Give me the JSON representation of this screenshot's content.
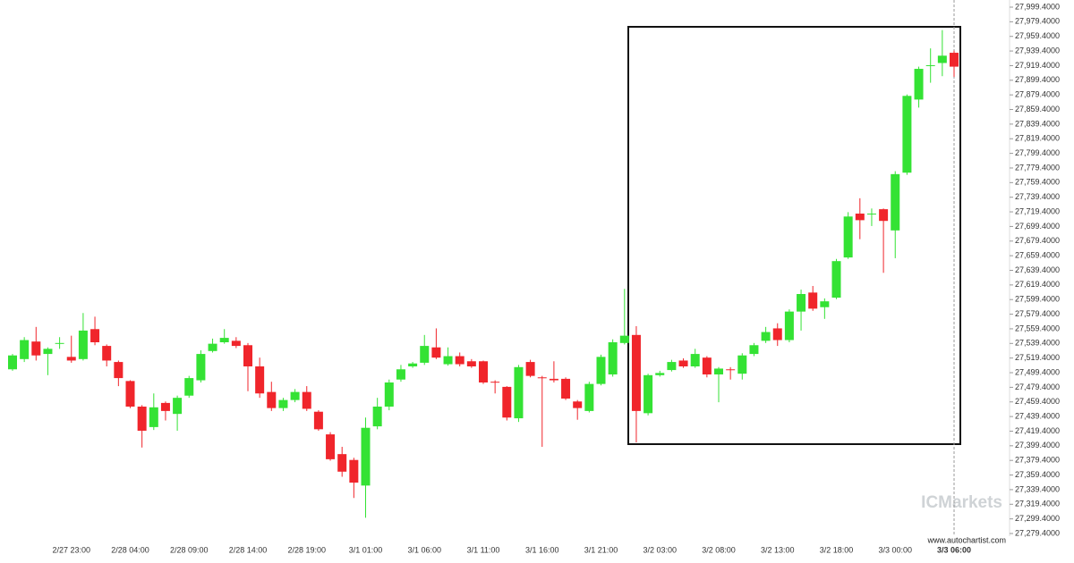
{
  "chart_data": {
    "type": "candlestick",
    "watermark": "ICMarkets",
    "source": "www.autochartist.com",
    "up_color": "#34e234",
    "down_color": "#f0252b",
    "categories": [
      null,
      null,
      null,
      null,
      null,
      "2/27 23:00",
      null,
      null,
      null,
      null,
      "2/28 04:00",
      null,
      null,
      null,
      null,
      "2/28 09:00",
      null,
      null,
      null,
      null,
      "2/28 14:00",
      null,
      null,
      null,
      null,
      "2/28 19:00",
      null,
      null,
      null,
      null,
      "3/1 01:00",
      null,
      null,
      null,
      null,
      "3/1 06:00",
      null,
      null,
      null,
      null,
      "3/1 11:00",
      null,
      null,
      null,
      null,
      "3/1 16:00",
      null,
      null,
      null,
      null,
      "3/1 21:00",
      null,
      null,
      null,
      null,
      "3/2 03:00",
      null,
      null,
      null,
      null,
      "3/2 08:00",
      null,
      null,
      null,
      null,
      "3/2 13:00",
      null,
      null,
      null,
      null,
      "3/2 18:00",
      null,
      null,
      null,
      null,
      "3/3 00:00",
      null,
      null,
      null,
      null,
      "3/3 06:00"
    ],
    "open": [
      27504,
      27518,
      27542,
      27525,
      27540,
      27521,
      27518,
      27559,
      27536,
      27514,
      27488,
      27453,
      27425,
      27458,
      27443,
      27468,
      27489,
      27529,
      27541,
      27543,
      27537,
      27508,
      27473,
      27451,
      27462,
      27473,
      27446,
      27415,
      27388,
      27380,
      27345,
      27426,
      27453,
      27490,
      27508,
      27513,
      27534,
      27511,
      27522,
      27515,
      27515,
      27487,
      27480,
      27437,
      27514,
      27493,
      27491,
      27491,
      27460,
      27447,
      27484,
      27497,
      27540,
      27551,
      27444,
      27496,
      27503,
      27516,
      27508,
      27520,
      27497,
      27504,
      27498,
      27525,
      27543,
      27560,
      27544,
      27583,
      27609,
      27589,
      27602,
      27657,
      27717,
      27716,
      27723,
      27694,
      27773,
      27873,
      27919,
      27923,
      27937
    ],
    "high": [
      27525,
      27548,
      27562,
      27534,
      27548,
      27550,
      27581,
      27576,
      27538,
      27516,
      27489,
      27455,
      27471,
      27460,
      27468,
      27495,
      27530,
      27546,
      27559,
      27548,
      27540,
      27520,
      27487,
      27465,
      27477,
      27481,
      27448,
      27418,
      27398,
      27383,
      27438,
      27465,
      27490,
      27510,
      27514,
      27551,
      27560,
      27534,
      27527,
      27518,
      27516,
      27489,
      27481,
      27510,
      27517,
      27495,
      27515,
      27493,
      27462,
      27487,
      27524,
      27545,
      27614,
      27563,
      27498,
      27502,
      27517,
      27519,
      27532,
      27522,
      27507,
      27507,
      27526,
      27540,
      27562,
      27567,
      27586,
      27613,
      27618,
      27601,
      27655,
      27719,
      27738,
      27724,
      27724,
      27775,
      27880,
      27918,
      27943,
      27968,
      27940
    ],
    "low": [
      27502,
      27514,
      27516,
      27496,
      27532,
      27513,
      27516,
      27537,
      27508,
      27481,
      27451,
      27397,
      27421,
      27434,
      27420,
      27465,
      27486,
      27527,
      27539,
      27533,
      27474,
      27465,
      27447,
      27447,
      27459,
      27447,
      27420,
      27379,
      27357,
      27328,
      27301,
      27422,
      27448,
      27487,
      27506,
      27510,
      27518,
      27509,
      27508,
      27506,
      27484,
      27471,
      27434,
      27432,
      27493,
      27398,
      27486,
      27462,
      27435,
      27445,
      27482,
      27494,
      27538,
      27404,
      27441,
      27494,
      27501,
      27506,
      27506,
      27493,
      27459,
      27490,
      27490,
      27522,
      27540,
      27536,
      27541,
      27557,
      27584,
      27573,
      27600,
      27655,
      27682,
      27700,
      27636,
      27656,
      27770,
      27862,
      27896,
      27905,
      27904
    ],
    "close": [
      27523,
      27544,
      27523,
      27532,
      27540,
      27516,
      27557,
      27541,
      27516,
      27492,
      27453,
      27420,
      27452,
      27447,
      27465,
      27492,
      27525,
      27539,
      27547,
      27536,
      27508,
      27471,
      27451,
      27462,
      27473,
      27450,
      27422,
      27381,
      27364,
      27349,
      27424,
      27453,
      27486,
      27504,
      27512,
      27536,
      27520,
      27522,
      27511,
      27508,
      27486,
      27486,
      27438,
      27507,
      27495,
      27492,
      27489,
      27464,
      27451,
      27484,
      27521,
      27541,
      27550,
      27447,
      27496,
      27499,
      27514,
      27508,
      27525,
      27497,
      27505,
      27503,
      27523,
      27537,
      27555,
      27544,
      27583,
      27607,
      27587,
      27597,
      27652,
      27713,
      27708,
      27717,
      27707,
      27771,
      27878,
      27915,
      27920,
      27933,
      27918
    ],
    "ylim": [
      27279.4,
      27999.4
    ],
    "yticks": [
      {
        "value": 27279.4,
        "label": "27,279.4000"
      },
      {
        "value": 27299.4,
        "label": "27,299.4000"
      },
      {
        "value": 27319.4,
        "label": "27,319.4000"
      },
      {
        "value": 27339.4,
        "label": "27,339.4000"
      },
      {
        "value": 27359.4,
        "label": "27,359.4000"
      },
      {
        "value": 27379.4,
        "label": "27,379.4000"
      },
      {
        "value": 27399.4,
        "label": "27,399.4000"
      },
      {
        "value": 27419.4,
        "label": "27,419.4000"
      },
      {
        "value": 27439.4,
        "label": "27,439.4000"
      },
      {
        "value": 27459.4,
        "label": "27,459.4000"
      },
      {
        "value": 27479.4,
        "label": "27,479.4000"
      },
      {
        "value": 27499.4,
        "label": "27,499.4000"
      },
      {
        "value": 27519.4,
        "label": "27,519.4000"
      },
      {
        "value": 27539.4,
        "label": "27,539.4000"
      },
      {
        "value": 27559.4,
        "label": "27,559.4000"
      },
      {
        "value": 27579.4,
        "label": "27,579.4000"
      },
      {
        "value": 27599.4,
        "label": "27,599.4000"
      },
      {
        "value": 27619.4,
        "label": "27,619.4000"
      },
      {
        "value": 27639.4,
        "label": "27,639.4000"
      },
      {
        "value": 27659.4,
        "label": "27,659.4000"
      },
      {
        "value": 27679.4,
        "label": "27,679.4000"
      },
      {
        "value": 27699.4,
        "label": "27,699.4000"
      },
      {
        "value": 27719.4,
        "label": "27,719.4000"
      },
      {
        "value": 27739.4,
        "label": "27,739.4000"
      },
      {
        "value": 27759.4,
        "label": "27,759.4000"
      },
      {
        "value": 27779.4,
        "label": "27,779.4000"
      },
      {
        "value": 27799.4,
        "label": "27,799.4000"
      },
      {
        "value": 27819.4,
        "label": "27,819.4000"
      },
      {
        "value": 27839.4,
        "label": "27,839.4000"
      },
      {
        "value": 27859.4,
        "label": "27,859.4000"
      },
      {
        "value": 27879.4,
        "label": "27,879.4000"
      },
      {
        "value": 27899.4,
        "label": "27,899.4000"
      },
      {
        "value": 27919.4,
        "label": "27,919.4000"
      },
      {
        "value": 27939.4,
        "label": "27,939.4000"
      },
      {
        "value": 27959.4,
        "label": "27,959.4000"
      },
      {
        "value": 27979.4,
        "label": "27,979.4000"
      },
      {
        "value": 27999.4,
        "label": "27,999.4000"
      }
    ]
  }
}
